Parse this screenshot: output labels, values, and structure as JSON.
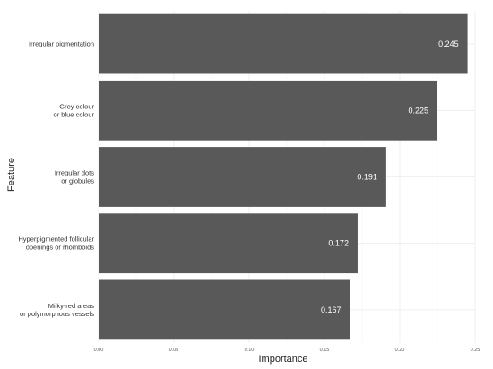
{
  "chart_data": {
    "type": "bar",
    "orientation": "horizontal",
    "xlabel": "Importance",
    "ylabel": "Feature",
    "xlim": [
      0,
      0.25
    ],
    "x_ticks": [
      "0.00",
      "0.05",
      "0.10",
      "0.15",
      "0.20",
      "0.25"
    ],
    "grid": true,
    "bar_color": "#595959",
    "categories": [
      [
        "Irregular pigmentation"
      ],
      [
        "Grey colour",
        "or blue colour"
      ],
      [
        "Irregular dots",
        "or globules"
      ],
      [
        "Hyperpigmented follicular",
        "openings or rhomboids"
      ],
      [
        "Milky-red areas",
        "or polymorphous vessels"
      ]
    ],
    "values": [
      0.245,
      0.225,
      0.191,
      0.172,
      0.167
    ],
    "value_labels": [
      "0.245",
      "0.225",
      "0.191",
      "0.172",
      "0.167"
    ]
  }
}
